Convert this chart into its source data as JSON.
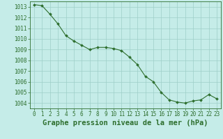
{
  "x": [
    0,
    1,
    2,
    3,
    4,
    5,
    6,
    7,
    8,
    9,
    10,
    11,
    12,
    13,
    14,
    15,
    16,
    17,
    18,
    19,
    20,
    21,
    22,
    23
  ],
  "y": [
    1013.2,
    1013.1,
    1012.3,
    1011.4,
    1010.3,
    1009.8,
    1009.4,
    1009.0,
    1009.2,
    1009.2,
    1009.1,
    1008.9,
    1008.3,
    1007.6,
    1006.5,
    1006.0,
    1005.0,
    1004.3,
    1004.1,
    1004.0,
    1004.2,
    1004.3,
    1004.8,
    1004.4
  ],
  "ylim": [
    1003.5,
    1013.5
  ],
  "yticks": [
    1004,
    1005,
    1006,
    1007,
    1008,
    1009,
    1010,
    1011,
    1012,
    1013
  ],
  "xlim": [
    -0.5,
    23.5
  ],
  "xticks": [
    0,
    1,
    2,
    3,
    4,
    5,
    6,
    7,
    8,
    9,
    10,
    11,
    12,
    13,
    14,
    15,
    16,
    17,
    18,
    19,
    20,
    21,
    22,
    23
  ],
  "line_color": "#2d6e2d",
  "marker_color": "#2d6e2d",
  "bg_color": "#c5ece8",
  "grid_color": "#9ecec8",
  "xlabel": "Graphe pression niveau de la mer (hPa)",
  "xlabel_color": "#2d6e2d",
  "tick_color": "#2d6e2d",
  "spine_color": "#2d6e2d",
  "tick_fontsize": 5.5,
  "xlabel_fontsize": 7.5
}
